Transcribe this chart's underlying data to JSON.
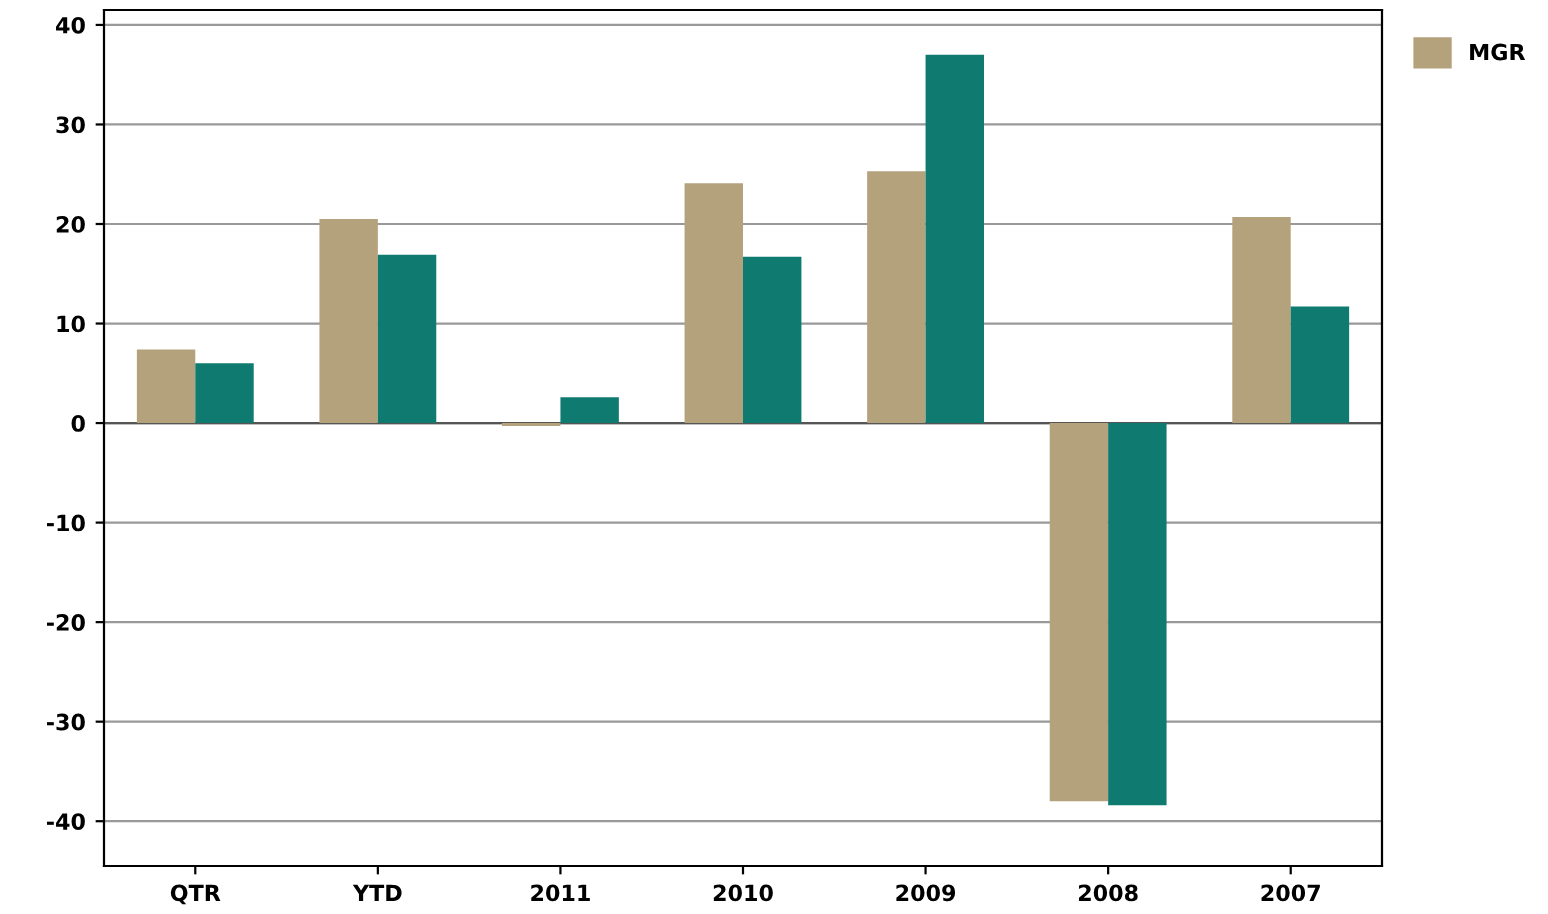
{
  "chart_data": {
    "type": "bar",
    "categories": [
      "QTR",
      "YTD",
      "2011",
      "2010",
      "2009",
      "2008",
      "2007"
    ],
    "series": [
      {
        "name": "MGR",
        "color": "#b4a27d",
        "values": [
          7.4,
          20.5,
          -0.3,
          24.1,
          25.3,
          -38.0,
          20.7
        ]
      },
      {
        "color": "#0f7b70",
        "values": [
          6.0,
          16.9,
          2.6,
          16.7,
          37.0,
          -38.4,
          11.7
        ]
      }
    ],
    "ylim": [
      -44.5,
      41.5
    ],
    "yticks": [
      -40,
      -30,
      -20,
      -10,
      0,
      10,
      20,
      30,
      40
    ],
    "grid": "y",
    "legend": "right"
  }
}
